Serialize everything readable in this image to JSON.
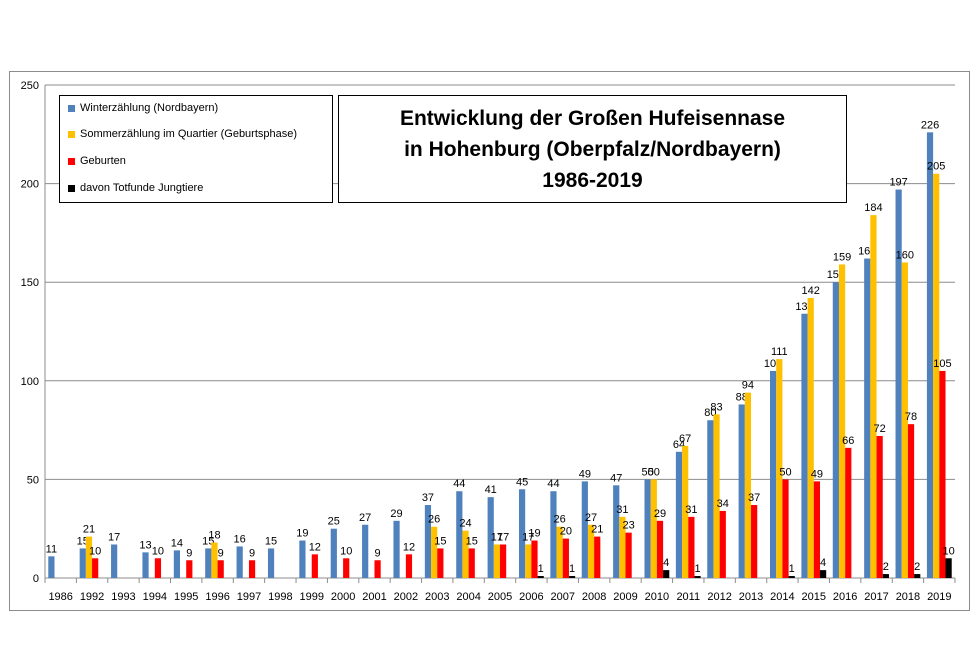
{
  "chart_data": {
    "type": "bar",
    "title_lines": [
      "Entwicklung der Großen Hufeisennase",
      "in Hohenburg (Oberpfalz/Nordbayern)",
      "1986-2019"
    ],
    "categories": [
      "1986",
      "1992",
      "1993",
      "1994",
      "1995",
      "1996",
      "1997",
      "1998",
      "1999",
      "2000",
      "2001",
      "2002",
      "2003",
      "2004",
      "2005",
      "2006",
      "2007",
      "2008",
      "2009",
      "2010",
      "2011",
      "2012",
      "2013",
      "2014",
      "2015",
      "2016",
      "2017",
      "2018",
      "2019"
    ],
    "yticks": [
      "0",
      "50",
      "100",
      "150",
      "200",
      "250"
    ],
    "ylim": [
      0,
      250
    ],
    "grid": true,
    "legend_position": "top-left",
    "series": [
      {
        "name": "Winterzählung (Nordbayern)",
        "color": "#4f81bd",
        "values": [
          11,
          15,
          17,
          13,
          14,
          15,
          16,
          15,
          19,
          25,
          27,
          29,
          37,
          44,
          41,
          45,
          44,
          49,
          47,
          50,
          64,
          80,
          88,
          105,
          134,
          150,
          162,
          197,
          226
        ]
      },
      {
        "name": "Sommerzählung im Quartier (Geburtsphase)",
        "color": "#ffc000",
        "values": [
          null,
          21,
          null,
          null,
          null,
          18,
          null,
          null,
          null,
          null,
          null,
          null,
          26,
          24,
          17,
          17,
          26,
          27,
          31,
          50,
          67,
          83,
          94,
          111,
          142,
          159,
          184,
          160,
          205
        ]
      },
      {
        "name": "Geburten",
        "color": "#ff0000",
        "values": [
          null,
          10,
          null,
          10,
          9,
          9,
          9,
          null,
          12,
          10,
          9,
          12,
          15,
          15,
          17,
          19,
          20,
          21,
          23,
          29,
          31,
          34,
          37,
          50,
          49,
          66,
          72,
          78,
          105
        ]
      },
      {
        "name": "davon Totfunde Jungtiere",
        "color": "#000000",
        "values": [
          null,
          null,
          null,
          null,
          null,
          null,
          null,
          null,
          null,
          null,
          null,
          null,
          null,
          null,
          null,
          1,
          1,
          null,
          null,
          4,
          1,
          null,
          null,
          1,
          4,
          null,
          2,
          2,
          10
        ]
      }
    ]
  }
}
